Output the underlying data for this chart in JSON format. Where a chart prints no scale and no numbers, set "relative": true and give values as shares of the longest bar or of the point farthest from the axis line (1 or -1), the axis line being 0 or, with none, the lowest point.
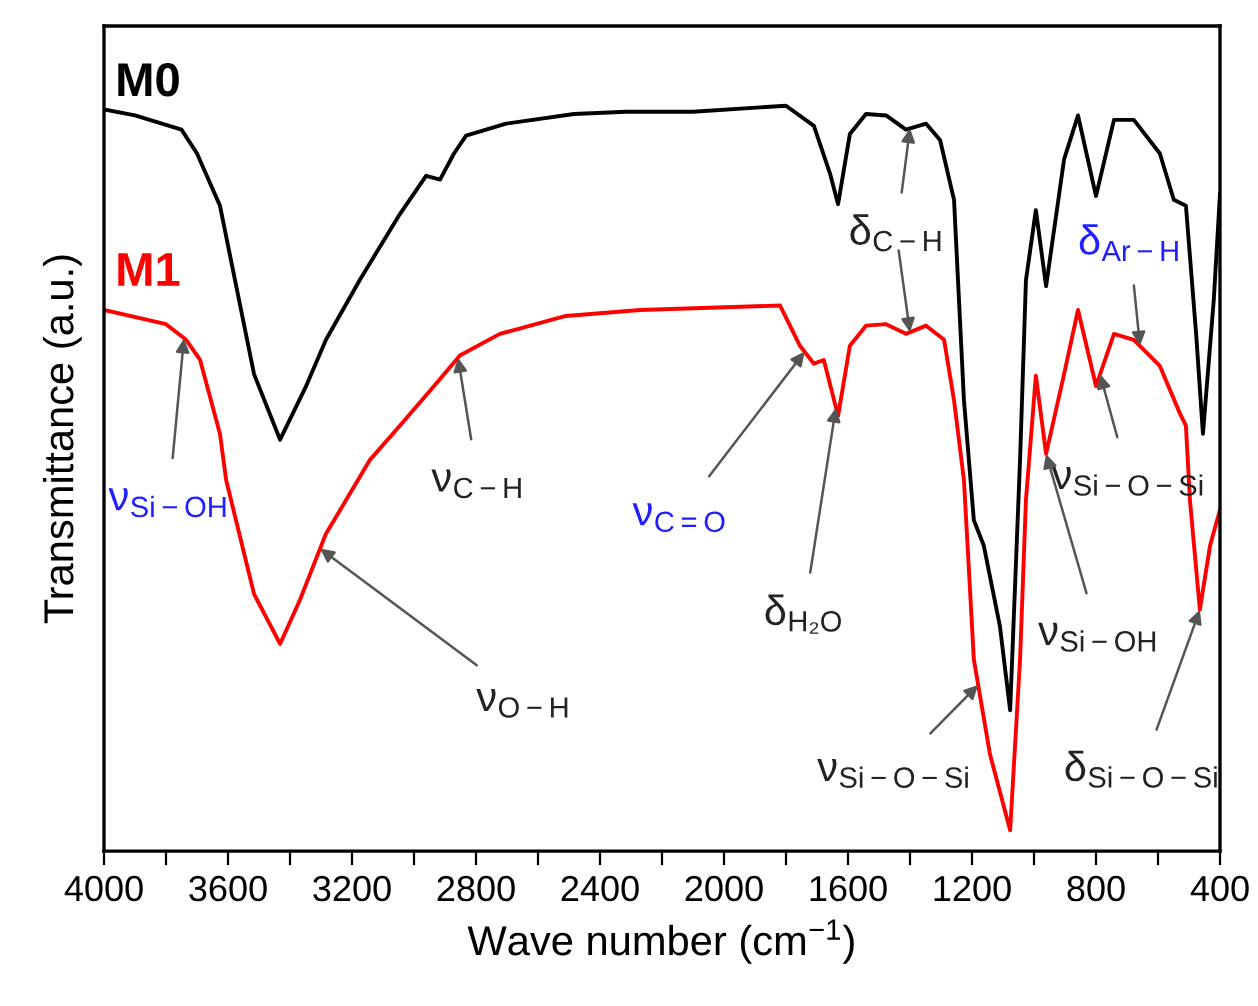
{
  "chart_data": {
    "type": "line",
    "relative": true,
    "xlabel": "Wave number (cm$^{−1}$)",
    "ylabel": "Transmittance (a.u.)",
    "xlim": [
      4000,
      400
    ],
    "xticks": [
      4000,
      {
        "value": 3800,
        "label": null
      },
      3600,
      {
        "value": 3400,
        "label": null
      },
      3200,
      {
        "value": 3000,
        "label": null
      },
      2800,
      {
        "value": 2600,
        "label": null
      },
      2400,
      {
        "value": 2200,
        "label": null
      },
      2000,
      {
        "value": 1800,
        "label": null
      },
      1600,
      {
        "value": 1400,
        "label": null
      },
      1200,
      {
        "value": 1000,
        "label": null
      },
      800,
      {
        "value": 600,
        "label": null
      },
      400
    ],
    "tick_labels": "x",
    "marker": "none",
    "line_style": "solid",
    "series": [
      {
        "name": "M0",
        "color": "#000000",
        "x": [
          4000,
          3900,
          3750,
          3700,
          3626,
          3516,
          3432,
          3348,
          3284,
          3174,
          3045,
          2961,
          2916,
          2871,
          2832,
          2703,
          2484,
          2316,
          2100,
          1800,
          1710,
          1658,
          1632,
          1594,
          1542,
          1477,
          1413,
          1348,
          1303,
          1258,
          1226,
          1194,
          1162,
          1110,
          1077,
          1045,
          1026,
          994,
          961,
          903,
          858,
          800,
          742,
          678,
          594,
          549,
          510,
          477,
          455,
          420,
          400
        ],
        "values": [
          0.995,
          0.987,
          0.968,
          0.936,
          0.866,
          0.64,
          0.552,
          0.624,
          0.686,
          0.767,
          0.855,
          0.906,
          0.901,
          0.936,
          0.96,
          0.976,
          0.989,
          0.992,
          0.992,
          1.0,
          0.973,
          0.909,
          0.868,
          0.962,
          0.989,
          0.987,
          0.968,
          0.976,
          0.954,
          0.874,
          0.605,
          0.444,
          0.41,
          0.302,
          0.189,
          0.525,
          0.766,
          0.86,
          0.758,
          0.928,
          0.987,
          0.879,
          0.981,
          0.981,
          0.936,
          0.874,
          0.866,
          0.694,
          0.56,
          0.74,
          0.882
        ]
      },
      {
        "name": "M1",
        "color": "#ff0000",
        "x": [
          4000,
          3800,
          3735,
          3690,
          3626,
          3606,
          3516,
          3432,
          3368,
          3284,
          3219,
          3142,
          3045,
          2929,
          2852,
          2723,
          2510,
          2271,
          1819,
          1755,
          1710,
          1678,
          1632,
          1594,
          1542,
          1477,
          1413,
          1348,
          1290,
          1258,
          1226,
          1194,
          1142,
          1077,
          1045,
          1026,
          994,
          961,
          903,
          858,
          800,
          742,
          678,
          594,
          529,
          510,
          497,
          465,
          432,
          400
        ],
        "values": [
          0.726,
          0.707,
          0.686,
          0.659,
          0.56,
          0.498,
          0.345,
          0.278,
          0.337,
          0.426,
          0.471,
          0.525,
          0.571,
          0.627,
          0.665,
          0.694,
          0.718,
          0.726,
          0.732,
          0.678,
          0.654,
          0.659,
          0.584,
          0.678,
          0.705,
          0.707,
          0.694,
          0.705,
          0.686,
          0.605,
          0.498,
          0.257,
          0.13,
          0.028,
          0.257,
          0.471,
          0.638,
          0.533,
          0.64,
          0.726,
          0.624,
          0.694,
          0.686,
          0.651,
          0.587,
          0.571,
          0.471,
          0.324,
          0.41,
          0.458
        ]
      }
    ],
    "annotations": [
      {
        "text": "ν$_{Si−OH}$",
        "x": 3742,
        "y": 0.688
      },
      {
        "text": "ν$_{C−H}$",
        "x": 2858,
        "y": 0.662
      },
      {
        "text": "ν$_{O−H}$",
        "x": 3303,
        "y": 0.406
      },
      {
        "text": "ν$_{C=O}$",
        "x": 1740,
        "y": 0.67
      },
      {
        "text": "δ$_{H₂O}$",
        "x": 1639,
        "y": 0.595
      },
      {
        "text": "δ$_{C−H}$",
        "x": 1400,
        "y": 0.97
      },
      {
        "text": "δ$_{Ar−H}$",
        "x": 658,
        "y": 0.678
      },
      {
        "text": "ν$_{Si−O−Si}$",
        "x": 787,
        "y": 0.64
      },
      {
        "text": "ν$_{Si−OH}$",
        "x": 961,
        "y": 0.533
      },
      {
        "text": "ν$_{Si−O−Si}$",
        "x": 1180,
        "y": 0.223
      },
      {
        "text": "δ$_{Si−O−Si}$",
        "x": 465,
        "y": 0.324
      }
    ]
  }
}
